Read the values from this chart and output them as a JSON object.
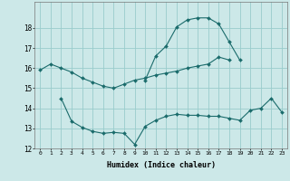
{
  "xlabel": "Humidex (Indice chaleur)",
  "background_color": "#cce8e8",
  "grid_color": "#99cccc",
  "line_color": "#1a6b6b",
  "x": [
    0,
    1,
    2,
    3,
    4,
    5,
    6,
    7,
    8,
    9,
    10,
    11,
    12,
    13,
    14,
    15,
    16,
    17,
    18,
    19,
    20,
    21,
    22,
    23
  ],
  "line1": [
    15.9,
    16.2,
    16.0,
    15.8,
    15.5,
    15.3,
    15.1,
    15.0,
    15.2,
    15.4,
    15.5,
    15.65,
    15.75,
    15.85,
    16.0,
    16.1,
    16.2,
    16.55,
    16.4,
    null,
    null,
    null,
    null,
    null
  ],
  "line2": [
    null,
    null,
    null,
    null,
    null,
    null,
    null,
    null,
    null,
    null,
    15.4,
    16.6,
    17.1,
    18.05,
    18.4,
    18.5,
    18.5,
    18.2,
    17.3,
    16.4,
    null,
    null,
    null,
    null
  ],
  "line3": [
    null,
    null,
    14.5,
    13.35,
    13.05,
    12.85,
    12.75,
    12.8,
    12.75,
    12.2,
    13.1,
    13.4,
    13.6,
    13.7,
    13.65,
    13.65,
    13.6,
    13.6,
    13.5,
    13.4,
    13.9,
    14.0,
    14.5,
    13.8
  ],
  "ylim": [
    12,
    19
  ],
  "yticks": [
    12,
    13,
    14,
    15,
    16,
    17,
    18
  ],
  "xticks": [
    0,
    1,
    2,
    3,
    4,
    5,
    6,
    7,
    8,
    9,
    10,
    11,
    12,
    13,
    14,
    15,
    16,
    17,
    18,
    19,
    20,
    21,
    22,
    23
  ],
  "marker": "D",
  "markersize": 2.0,
  "linewidth": 0.8
}
